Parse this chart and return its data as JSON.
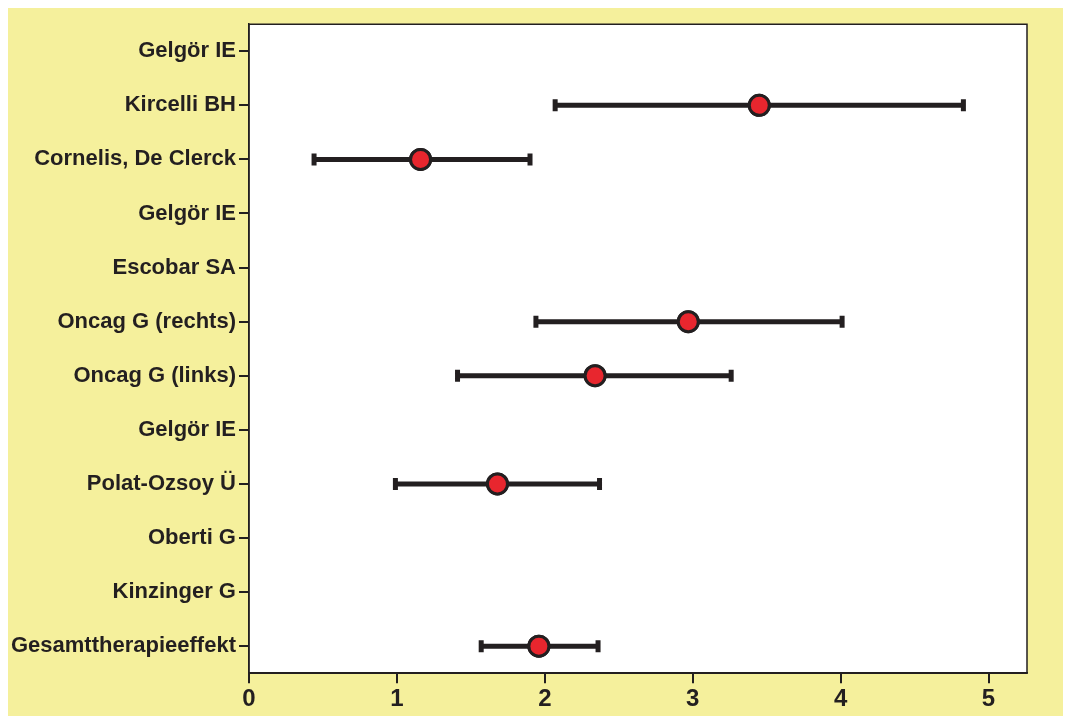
{
  "chart_data": {
    "type": "scatter",
    "orientation": "horizontal",
    "marker": "circle",
    "color": "#e8262e",
    "categories": [
      "Gelgör IE",
      "Kircelli BH",
      "Cornelis, De Clerck",
      "Gelgör IE",
      "Escobar SA",
      "Oncag G (rechts)",
      "Oncag G (links)",
      "Gelgör IE",
      "Polat-Ozsoy Ü",
      "Oberti G",
      "Kinzinger G",
      "Gesamttherapieeffekt"
    ],
    "values": [
      null,
      3.45,
      1.16,
      null,
      null,
      2.97,
      2.34,
      null,
      1.68,
      null,
      null,
      1.96
    ],
    "errors": [
      null,
      [
        2.07,
        4.83
      ],
      [
        0.44,
        1.9
      ],
      null,
      null,
      [
        1.94,
        4.01
      ],
      [
        1.41,
        3.26
      ],
      null,
      [
        0.99,
        2.37
      ],
      null,
      null,
      [
        1.57,
        2.36
      ]
    ],
    "xlim": [
      0,
      5.26
    ],
    "xticks": [
      0,
      1,
      2,
      3,
      4,
      5
    ]
  }
}
